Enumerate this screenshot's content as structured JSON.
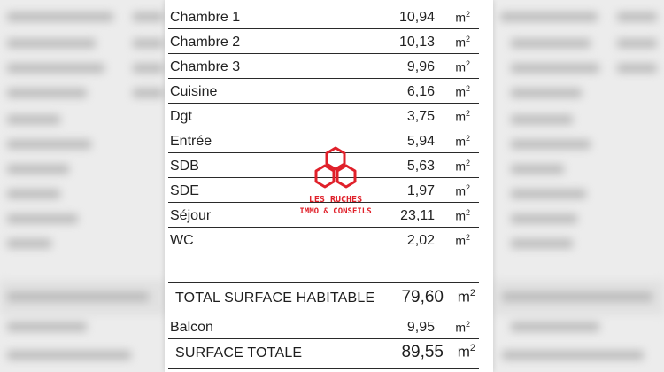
{
  "rooms": [
    {
      "label": "Chambre 1",
      "value": "10,94",
      "unit": "m",
      "sup": "2"
    },
    {
      "label": "Chambre 2",
      "value": "10,13",
      "unit": "m",
      "sup": "2"
    },
    {
      "label": "Chambre 3",
      "value": "9,96",
      "unit": "m",
      "sup": "2"
    },
    {
      "label": "Cuisine",
      "value": "6,16",
      "unit": "m",
      "sup": "2"
    },
    {
      "label": "Dgt",
      "value": "3,75",
      "unit": "m",
      "sup": "2"
    },
    {
      "label": "Entrée",
      "value": "5,94",
      "unit": "m",
      "sup": "2"
    },
    {
      "label": "SDB",
      "value": "5,63",
      "unit": "m",
      "sup": "2"
    },
    {
      "label": "SDE",
      "value": "1,97",
      "unit": "m",
      "sup": "2"
    },
    {
      "label": "Séjour",
      "value": "23,11",
      "unit": "m",
      "sup": "2"
    },
    {
      "label": "WC",
      "value": "2,02",
      "unit": "m",
      "sup": "2"
    }
  ],
  "total_habitable": {
    "label": "TOTAL SURFACE HABITABLE",
    "value": "79,60",
    "unit": "m",
    "sup": "2"
  },
  "balcon": {
    "label": "Balcon",
    "value": "9,95",
    "unit": "m",
    "sup": "2"
  },
  "surface_totale": {
    "label": "SURFACE TOTALE",
    "value": "89,55",
    "unit": "m",
    "sup": "2"
  },
  "watermark": {
    "line1": "LES RUCHES",
    "line2": "IMMO & CONSEILS",
    "color": "#e0202a"
  }
}
